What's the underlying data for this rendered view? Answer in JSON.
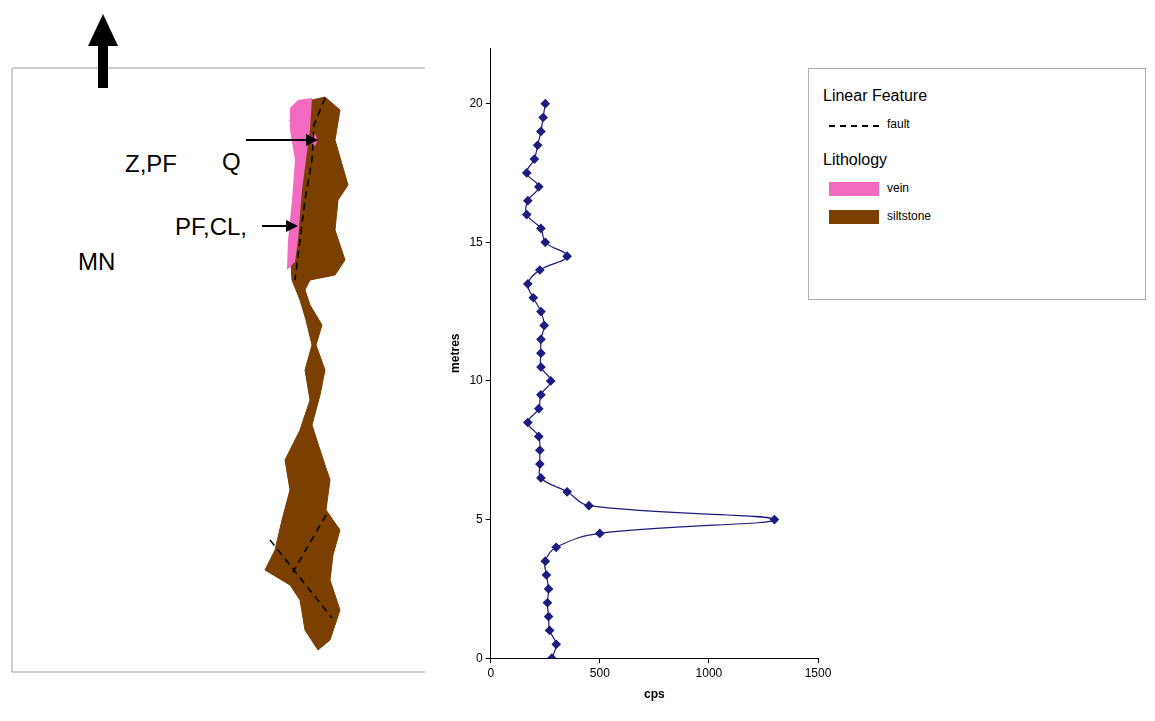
{
  "chart_data": {
    "type": "line",
    "xlabel": "cps",
    "ylabel": "metres",
    "x": [
      280,
      300,
      270,
      265,
      260,
      265,
      255,
      250,
      300,
      500,
      1300,
      450,
      350,
      230,
      225,
      225,
      220,
      170,
      220,
      230,
      275,
      230,
      230,
      230,
      245,
      230,
      195,
      170,
      225,
      350,
      250,
      230,
      165,
      170,
      220,
      165,
      200,
      215,
      230,
      240,
      250
    ],
    "values": [
      0,
      0.5,
      1,
      1.5,
      2,
      2.5,
      3,
      3.5,
      4,
      4.5,
      5,
      5.5,
      6,
      6.5,
      7,
      7.5,
      8,
      8.5,
      9,
      9.5,
      10,
      10.5,
      11,
      11.5,
      12,
      12.5,
      13,
      13.5,
      14,
      14.5,
      15,
      15.5,
      16,
      16.5,
      17,
      17.5,
      18,
      18.5,
      19,
      19.5,
      20
    ],
    "xlim": [
      0,
      1500
    ],
    "xticks": [
      0,
      500,
      1000,
      1500
    ],
    "ylim": [
      0,
      22
    ],
    "yticks": [
      0,
      5,
      10,
      15,
      20
    ],
    "color": "#1c1c80",
    "marker": "diamond",
    "grid": false
  },
  "map": {
    "labels": [
      "Q",
      "Z,PF",
      "PF,CL,",
      "MN"
    ]
  },
  "legend_panel": {
    "groups": [
      {
        "title": "Linear Feature",
        "items": [
          {
            "label": "fault",
            "line_style": "dashed",
            "color": "#000000"
          }
        ]
      },
      {
        "title": "Lithology",
        "items": [
          {
            "label": "vein",
            "color": "#f26bc0"
          },
          {
            "label": "siltstone",
            "color": "#7b3f00"
          }
        ]
      }
    ]
  }
}
